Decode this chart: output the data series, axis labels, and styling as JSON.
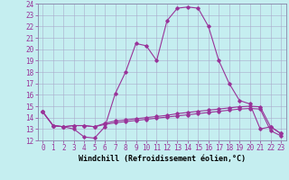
{
  "xlabel": "Windchill (Refroidissement éolien,°C)",
  "bg_color": "#c5eef0",
  "line_color": "#993399",
  "grid_color": "#aaaacc",
  "xlim": [
    -0.5,
    23.5
  ],
  "ylim": [
    12,
    24
  ],
  "yticks": [
    12,
    13,
    14,
    15,
    16,
    17,
    18,
    19,
    20,
    21,
    22,
    23,
    24
  ],
  "xticks": [
    0,
    1,
    2,
    3,
    4,
    5,
    6,
    7,
    8,
    9,
    10,
    11,
    12,
    13,
    14,
    15,
    16,
    17,
    18,
    19,
    20,
    21,
    22,
    23
  ],
  "series": [
    [
      14.5,
      13.3,
      13.2,
      13.0,
      12.3,
      12.2,
      13.2,
      16.1,
      18.0,
      20.5,
      20.3,
      19.0,
      22.5,
      23.6,
      23.7,
      23.6,
      22.0,
      19.0,
      17.0,
      15.5,
      15.2,
      13.0,
      13.2,
      12.6
    ],
    [
      14.5,
      13.3,
      13.2,
      13.3,
      13.3,
      13.2,
      13.5,
      13.7,
      13.8,
      13.9,
      14.0,
      14.1,
      14.2,
      14.35,
      14.45,
      14.55,
      14.65,
      14.75,
      14.85,
      14.95,
      15.0,
      14.95,
      13.2,
      12.6
    ],
    [
      14.5,
      13.3,
      13.2,
      13.3,
      13.3,
      13.2,
      13.4,
      13.55,
      13.65,
      13.75,
      13.85,
      13.95,
      14.05,
      14.15,
      14.25,
      14.35,
      14.45,
      14.55,
      14.65,
      14.75,
      14.8,
      14.75,
      12.85,
      12.4
    ]
  ],
  "tick_fontsize": 5.5,
  "xlabel_fontsize": 6.0
}
